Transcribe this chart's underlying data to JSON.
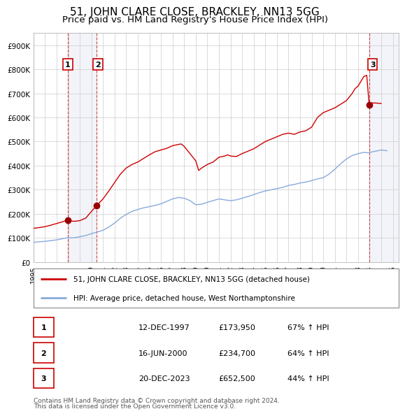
{
  "title": "51, JOHN CLARE CLOSE, BRACKLEY, NN13 5GG",
  "subtitle": "Price paid vs. HM Land Registry's House Price Index (HPI)",
  "title_fontsize": 11,
  "subtitle_fontsize": 9.5,
  "ylim": [
    0,
    950000
  ],
  "yticks": [
    0,
    100000,
    200000,
    300000,
    400000,
    500000,
    600000,
    700000,
    800000,
    900000
  ],
  "ytick_labels": [
    "£0",
    "£100K",
    "£200K",
    "£300K",
    "£400K",
    "£500K",
    "£600K",
    "£700K",
    "£800K",
    "£900K"
  ],
  "xmin": 1995.0,
  "xmax": 2026.5,
  "xticks": [
    1995,
    1996,
    1997,
    1998,
    1999,
    2000,
    2001,
    2002,
    2003,
    2004,
    2005,
    2006,
    2007,
    2008,
    2009,
    2010,
    2011,
    2012,
    2013,
    2014,
    2015,
    2016,
    2017,
    2018,
    2019,
    2020,
    2021,
    2022,
    2023,
    2024,
    2025,
    2026
  ],
  "red_line_color": "#cc0000",
  "blue_line_color": "#88aadd",
  "sale_marker_color": "#990000",
  "sale1_x": 1997.96,
  "sale1_y": 173950,
  "sale2_x": 2000.46,
  "sale2_y": 234700,
  "sale3_x": 2023.96,
  "sale3_y": 652500,
  "legend_label_red": "51, JOHN CLARE CLOSE, BRACKLEY, NN13 5GG (detached house)",
  "legend_label_blue": "HPI: Average price, detached house, West Northamptonshire",
  "table_rows": [
    [
      "1",
      "12-DEC-1997",
      "£173,950",
      "67% ↑ HPI"
    ],
    [
      "2",
      "16-JUN-2000",
      "£234,700",
      "64% ↑ HPI"
    ],
    [
      "3",
      "20-DEC-2023",
      "£652,500",
      "44% ↑ HPI"
    ]
  ],
  "footnote1": "Contains HM Land Registry data © Crown copyright and database right 2024.",
  "footnote2": "This data is licensed under the Open Government Licence v3.0.",
  "background_color": "#ffffff",
  "grid_color": "#cccccc",
  "shaded_region1_x1": 1997.96,
  "shaded_region1_x2": 2000.46,
  "shaded_region2_x1": 2023.96,
  "shaded_region2_x2": 2026.5,
  "red_points": [
    [
      1995.0,
      140000
    ],
    [
      1995.5,
      143000
    ],
    [
      1996.0,
      147000
    ],
    [
      1996.5,
      153000
    ],
    [
      1997.0,
      160000
    ],
    [
      1997.5,
      167000
    ],
    [
      1997.96,
      173950
    ],
    [
      1998.2,
      171000
    ],
    [
      1998.5,
      169000
    ],
    [
      1999.0,
      172000
    ],
    [
      1999.5,
      182000
    ],
    [
      2000.0,
      210000
    ],
    [
      2000.46,
      234700
    ],
    [
      2001.0,
      262000
    ],
    [
      2001.5,
      295000
    ],
    [
      2002.0,
      330000
    ],
    [
      2002.5,
      365000
    ],
    [
      2003.0,
      390000
    ],
    [
      2003.5,
      405000
    ],
    [
      2004.0,
      415000
    ],
    [
      2004.5,
      430000
    ],
    [
      2005.0,
      445000
    ],
    [
      2005.5,
      458000
    ],
    [
      2006.0,
      465000
    ],
    [
      2006.5,
      472000
    ],
    [
      2007.0,
      483000
    ],
    [
      2007.5,
      488000
    ],
    [
      2007.75,
      490000
    ],
    [
      2008.0,
      480000
    ],
    [
      2008.5,
      450000
    ],
    [
      2009.0,
      420000
    ],
    [
      2009.25,
      380000
    ],
    [
      2009.5,
      390000
    ],
    [
      2010.0,
      405000
    ],
    [
      2010.5,
      415000
    ],
    [
      2011.0,
      435000
    ],
    [
      2011.5,
      440000
    ],
    [
      2011.75,
      445000
    ],
    [
      2012.0,
      440000
    ],
    [
      2012.5,
      438000
    ],
    [
      2013.0,
      450000
    ],
    [
      2013.5,
      460000
    ],
    [
      2014.0,
      470000
    ],
    [
      2014.5,
      485000
    ],
    [
      2015.0,
      500000
    ],
    [
      2015.5,
      510000
    ],
    [
      2016.0,
      520000
    ],
    [
      2016.5,
      530000
    ],
    [
      2017.0,
      535000
    ],
    [
      2017.5,
      530000
    ],
    [
      2018.0,
      540000
    ],
    [
      2018.5,
      545000
    ],
    [
      2019.0,
      560000
    ],
    [
      2019.5,
      600000
    ],
    [
      2020.0,
      620000
    ],
    [
      2020.5,
      630000
    ],
    [
      2021.0,
      640000
    ],
    [
      2021.5,
      655000
    ],
    [
      2022.0,
      670000
    ],
    [
      2022.25,
      685000
    ],
    [
      2022.5,
      700000
    ],
    [
      2022.75,
      720000
    ],
    [
      2023.0,
      730000
    ],
    [
      2023.25,
      750000
    ],
    [
      2023.5,
      770000
    ],
    [
      2023.75,
      775000
    ],
    [
      2023.96,
      652500
    ],
    [
      2024.0,
      660000
    ],
    [
      2024.5,
      660000
    ],
    [
      2025.0,
      658000
    ]
  ],
  "blue_points": [
    [
      1995.0,
      82000
    ],
    [
      1995.5,
      84000
    ],
    [
      1996.0,
      86000
    ],
    [
      1996.5,
      89000
    ],
    [
      1997.0,
      92000
    ],
    [
      1997.5,
      97000
    ],
    [
      1997.96,
      101000
    ],
    [
      1998.0,
      100000
    ],
    [
      1998.5,
      101000
    ],
    [
      1999.0,
      105000
    ],
    [
      1999.5,
      110000
    ],
    [
      2000.0,
      118000
    ],
    [
      2000.46,
      124000
    ],
    [
      2001.0,
      132000
    ],
    [
      2001.5,
      145000
    ],
    [
      2002.0,
      162000
    ],
    [
      2002.5,
      182000
    ],
    [
      2003.0,
      198000
    ],
    [
      2003.5,
      210000
    ],
    [
      2004.0,
      218000
    ],
    [
      2004.5,
      225000
    ],
    [
      2005.0,
      230000
    ],
    [
      2005.5,
      235000
    ],
    [
      2006.0,
      242000
    ],
    [
      2006.5,
      252000
    ],
    [
      2007.0,
      262000
    ],
    [
      2007.5,
      268000
    ],
    [
      2008.0,
      265000
    ],
    [
      2008.5,
      255000
    ],
    [
      2009.0,
      238000
    ],
    [
      2009.5,
      240000
    ],
    [
      2010.0,
      248000
    ],
    [
      2010.5,
      255000
    ],
    [
      2011.0,
      262000
    ],
    [
      2011.5,
      258000
    ],
    [
      2012.0,
      255000
    ],
    [
      2012.5,
      258000
    ],
    [
      2013.0,
      265000
    ],
    [
      2013.5,
      272000
    ],
    [
      2014.0,
      280000
    ],
    [
      2014.5,
      288000
    ],
    [
      2015.0,
      295000
    ],
    [
      2015.5,
      300000
    ],
    [
      2016.0,
      305000
    ],
    [
      2016.5,
      310000
    ],
    [
      2017.0,
      318000
    ],
    [
      2017.5,
      322000
    ],
    [
      2018.0,
      328000
    ],
    [
      2018.5,
      332000
    ],
    [
      2019.0,
      338000
    ],
    [
      2019.5,
      345000
    ],
    [
      2020.0,
      350000
    ],
    [
      2020.5,
      365000
    ],
    [
      2021.0,
      385000
    ],
    [
      2021.5,
      408000
    ],
    [
      2022.0,
      428000
    ],
    [
      2022.5,
      442000
    ],
    [
      2023.0,
      450000
    ],
    [
      2023.5,
      455000
    ],
    [
      2023.96,
      453000
    ],
    [
      2024.0,
      455000
    ],
    [
      2024.5,
      460000
    ],
    [
      2025.0,
      465000
    ],
    [
      2025.5,
      462000
    ]
  ]
}
